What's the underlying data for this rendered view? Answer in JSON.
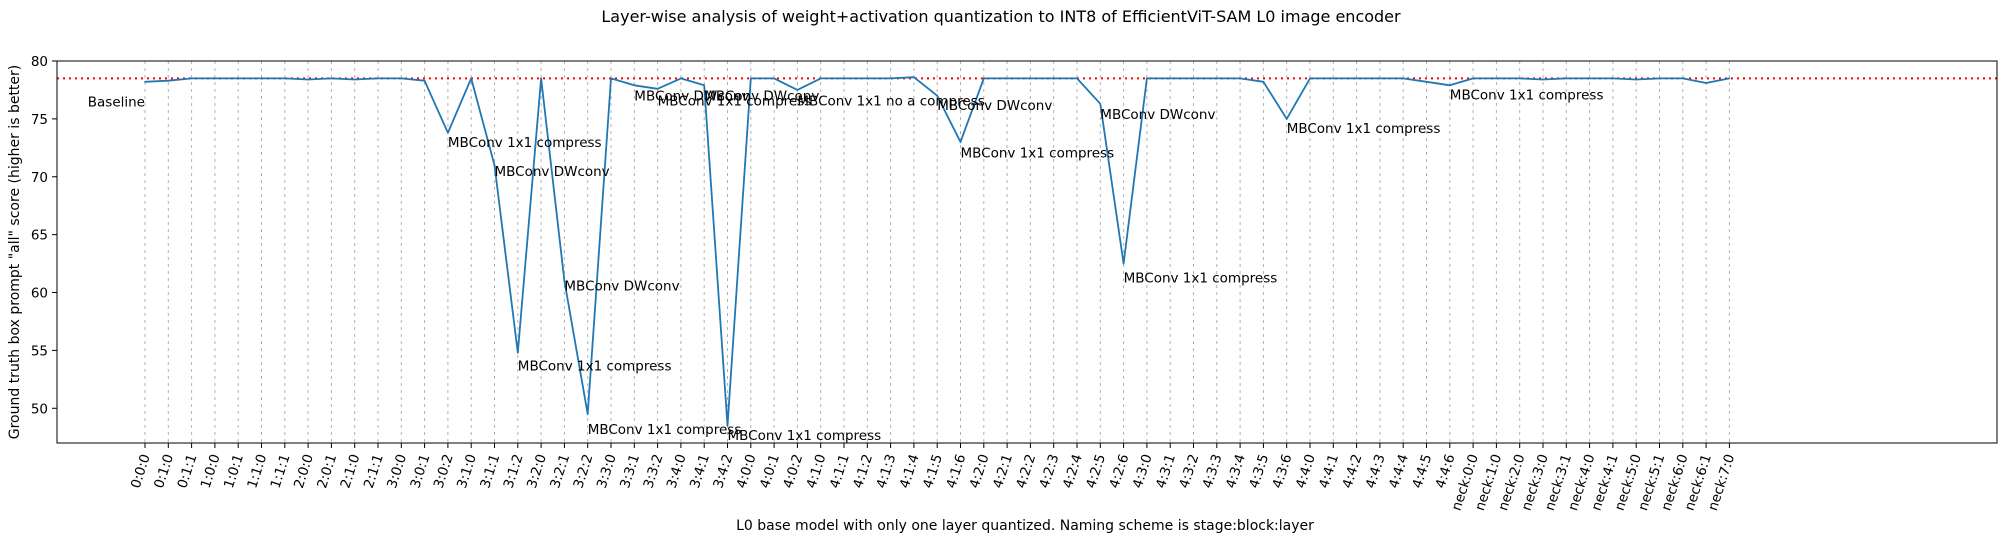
{
  "chart_data": {
    "type": "line",
    "title": "Layer-wise analysis of weight+activation quantization to INT8 of EfficientViT-SAM L0 image encoder",
    "xlabel": "L0 base model with only one layer quantized. Naming scheme is stage:block:layer",
    "ylabel": "Ground truth box prompt \"all\" score (higher is better)",
    "ylim": [
      47,
      80
    ],
    "yticks": [
      50,
      55,
      60,
      65,
      70,
      75,
      80
    ],
    "grid": "vertical dotted at each category",
    "line_color": "#1f77b4",
    "baseline_color": "#ff0000",
    "baseline_value": 78.5,
    "categories": [
      "0:0:0",
      "0:1:0",
      "0:1:1",
      "1:0:0",
      "1:0:1",
      "1:1:0",
      "1:1:1",
      "2:0:0",
      "2:0:1",
      "2:1:0",
      "2:1:1",
      "3:0:0",
      "3:0:1",
      "3:0:2",
      "3:1:0",
      "3:1:1",
      "3:1:2",
      "3:2:0",
      "3:2:1",
      "3:2:2",
      "3:3:0",
      "3:3:1",
      "3:3:2",
      "3:4:0",
      "3:4:1",
      "3:4:2",
      "4:0:0",
      "4:0:1",
      "4:0:2",
      "4:1:0",
      "4:1:1",
      "4:1:2",
      "4:1:3",
      "4:1:4",
      "4:1:5",
      "4:1:6",
      "4:2:0",
      "4:2:1",
      "4:2:2",
      "4:2:3",
      "4:2:4",
      "4:2:5",
      "4:2:6",
      "4:3:0",
      "4:3:1",
      "4:3:2",
      "4:3:3",
      "4:3:4",
      "4:3:5",
      "4:3:6",
      "4:4:0",
      "4:4:1",
      "4:4:2",
      "4:4:3",
      "4:4:4",
      "4:4:5",
      "4:4:6",
      "neck:0:0",
      "neck:1:0",
      "neck:2:0",
      "neck:3:0",
      "neck:3:1",
      "neck:4:0",
      "neck:4:1",
      "neck:5:0",
      "neck:5:1",
      "neck:6:0",
      "neck:6:1",
      "neck:7:0"
    ],
    "series": [
      {
        "values": [
          78.2,
          78.3,
          78.5,
          78.5,
          78.5,
          78.5,
          78.5,
          78.4,
          78.5,
          78.4,
          78.5,
          78.5,
          78.3,
          73.8,
          78.5,
          71.0,
          54.8,
          78.5,
          61.0,
          49.5,
          78.5,
          77.9,
          77.6,
          78.5,
          77.9,
          48.5,
          78.5,
          78.5,
          77.5,
          78.5,
          78.5,
          78.5,
          78.5,
          78.6,
          77.0,
          73.0,
          78.5,
          78.5,
          78.5,
          78.5,
          78.5,
          76.3,
          62.5,
          78.5,
          78.5,
          78.5,
          78.5,
          78.5,
          78.2,
          75.0,
          78.5,
          78.5,
          78.5,
          78.5,
          78.5,
          78.2,
          77.9,
          78.5,
          78.5,
          78.5,
          78.4,
          78.5,
          78.5,
          78.5,
          78.4,
          78.5,
          78.5,
          78.1,
          78.5
        ]
      }
    ],
    "annotations": [
      {
        "index": 0,
        "y": 76.5,
        "text": "Baseline",
        "anchor": "end"
      },
      {
        "index": 13,
        "y": 73.0,
        "text": "MBConv 1x1 compress"
      },
      {
        "index": 15,
        "y": 70.5,
        "text": "MBConv DWconv"
      },
      {
        "index": 16,
        "y": 53.7,
        "text": "MBConv 1x1 compress"
      },
      {
        "index": 18,
        "y": 60.6,
        "text": "MBConv DWconv"
      },
      {
        "index": 19,
        "y": 48.2,
        "text": "MBConv 1x1 compress"
      },
      {
        "index": 21,
        "y": 77.0,
        "text": "MBConv DWconv"
      },
      {
        "index": 22,
        "y": 76.6,
        "text": "MBConv 1x1 compress"
      },
      {
        "index": 24,
        "y": 77.0,
        "text": "MBConv DWconv"
      },
      {
        "index": 25,
        "y": 47.7,
        "text": "MBConv 1x1 compress"
      },
      {
        "index": 28,
        "y": 76.6,
        "text": "MBConv 1x1 no a compress"
      },
      {
        "index": 34,
        "y": 76.2,
        "text": "MBConv DWconv"
      },
      {
        "index": 35,
        "y": 72.1,
        "text": "MBConv 1x1 compress"
      },
      {
        "index": 41,
        "y": 75.4,
        "text": "MBConv DWconv"
      },
      {
        "index": 42,
        "y": 61.3,
        "text": "MBConv 1x1 compress"
      },
      {
        "index": 49,
        "y": 74.2,
        "text": "MBConv 1x1 compress"
      },
      {
        "index": 56,
        "y": 77.1,
        "text": "MBConv 1x1 compress"
      }
    ]
  }
}
